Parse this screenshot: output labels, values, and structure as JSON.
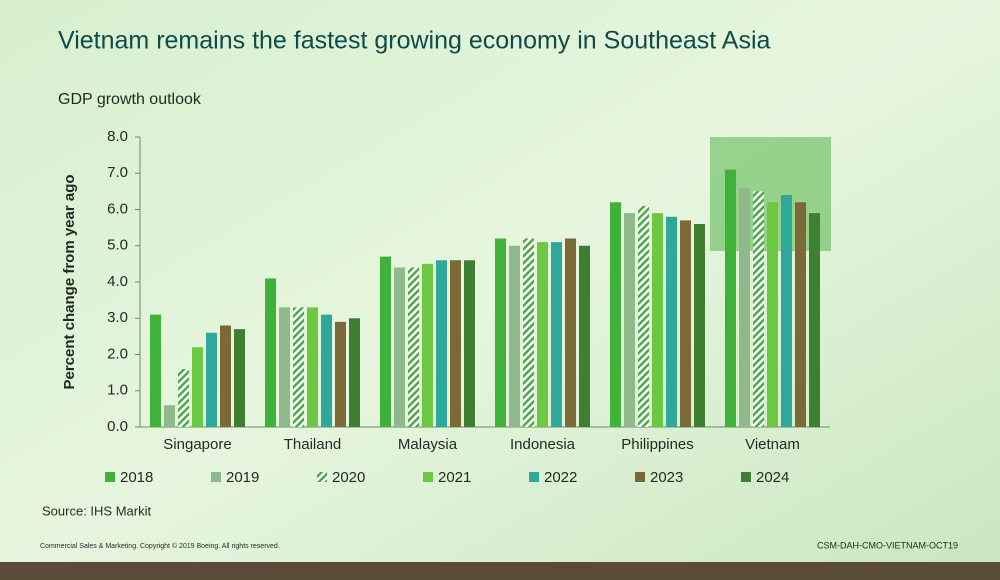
{
  "chart_data": {
    "type": "bar",
    "title": "Vietnam remains the fastest growing economy in Southeast Asia",
    "subtitle": "GDP growth outlook",
    "y_label": "Percent change from year ago",
    "source": "Source: IHS Markit",
    "footer_left": "Commercial Sales & Marketing. Copyright © 2019 Boeing. All rights reserved.",
    "footer_right": "CSM-DAH-CMO-VIETNAM-OCT19",
    "categories": [
      "Singapore",
      "Thailand",
      "Malaysia",
      "Indonesia",
      "Philippines",
      "Vietnam"
    ],
    "series": [
      {
        "name": "2018",
        "color": "#3fb23a",
        "values": [
          3.1,
          4.1,
          4.7,
          5.2,
          6.2,
          7.1
        ]
      },
      {
        "name": "2019",
        "color": "#8fb98a",
        "values": [
          0.6,
          3.3,
          4.4,
          5.0,
          5.9,
          6.6
        ]
      },
      {
        "name": "2020",
        "color": "#6fbf66",
        "hatch": true,
        "values": [
          1.6,
          3.3,
          4.4,
          5.2,
          6.1,
          6.5
        ]
      },
      {
        "name": "2021",
        "color": "#6cc843",
        "values": [
          2.2,
          3.3,
          4.5,
          5.1,
          5.9,
          6.2
        ]
      },
      {
        "name": "2022",
        "color": "#2ea89a",
        "values": [
          2.6,
          3.1,
          4.6,
          5.1,
          5.8,
          6.4
        ]
      },
      {
        "name": "2023",
        "color": "#7b6a35",
        "values": [
          2.8,
          2.9,
          4.6,
          5.2,
          5.7,
          6.2
        ]
      },
      {
        "name": "2024",
        "color": "#3f7f31",
        "values": [
          2.7,
          3.0,
          4.6,
          5.0,
          5.6,
          5.9
        ]
      }
    ],
    "ylim": [
      0,
      8
    ],
    "yticks": [
      {
        "value": 0,
        "label": "0.0"
      },
      {
        "value": 1,
        "label": "1.0"
      },
      {
        "value": 2,
        "label": "2.0"
      },
      {
        "value": 3,
        "label": "3.0"
      },
      {
        "value": 4,
        "label": "4.0"
      },
      {
        "value": 5,
        "label": "5.0"
      },
      {
        "value": 6,
        "label": "6.0"
      },
      {
        "value": 7,
        "label": "7.0"
      },
      {
        "value": 8,
        "label": "8.0"
      }
    ],
    "grid": false
  }
}
